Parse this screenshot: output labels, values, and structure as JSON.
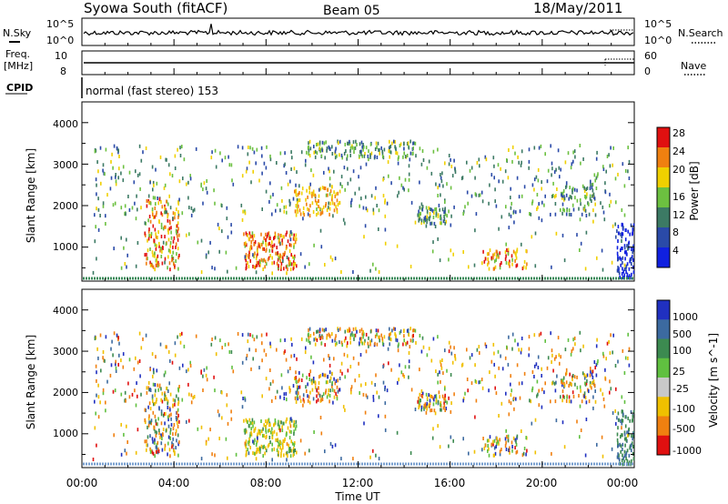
{
  "header": {
    "title": "Syowa South (fitACF)",
    "beam": "Beam 05",
    "date": "18/May/2011"
  },
  "noise_panel": {
    "left_label": "N.Sky",
    "right_label": "N.Search",
    "left_ticks": [
      "10^5",
      "10^0"
    ],
    "right_ticks": [
      "10^5",
      "10^0"
    ]
  },
  "freq_panel": {
    "left_label_1": "Freq.",
    "left_label_2": "[MHz]",
    "right_label": "Nave",
    "left_ticks": [
      "10",
      "8"
    ],
    "right_ticks": [
      "60",
      "0"
    ]
  },
  "cpid": {
    "label": "CPID",
    "mode_text": "normal (fast stereo) 153"
  },
  "axes": {
    "y_label": "Slant Range [km]",
    "y_ticks": [
      "1000",
      "2000",
      "3000",
      "4000"
    ],
    "x_label": "Time UT",
    "x_ticks": [
      "00:00",
      "04:00",
      "08:00",
      "12:00",
      "16:00",
      "20:00",
      "00:00"
    ]
  },
  "power_scale": {
    "label": "Power [dB]",
    "ticks": [
      "4",
      "8",
      "12",
      "16",
      "20",
      "24",
      "28"
    ],
    "colors": [
      "#1020e0",
      "#2a4aa8",
      "#3c7a64",
      "#6cc040",
      "#f0d000",
      "#f08010",
      "#e01010"
    ]
  },
  "velocity_scale": {
    "label": "Velocity [m s^-1]",
    "ticks": [
      "1000",
      "500",
      "100",
      "25",
      "-25",
      "-100",
      "-500",
      "-1000"
    ],
    "colors": [
      "#2030c0",
      "#3c6aa0",
      "#3c8a50",
      "#60c040",
      "#c8c8c8",
      "#f0c000",
      "#f08010",
      "#e01010"
    ]
  },
  "chart_data": {
    "type": "heatmap",
    "x_range_hours": [
      0,
      24
    ],
    "y_range_km": [
      180,
      4500
    ],
    "scatter_regions": [
      {
        "name": "sparse",
        "t": [
          0.5,
          23.8
        ],
        "r": [
          1800,
          3500
        ],
        "n": 520
      },
      {
        "name": "sparse-high",
        "t": [
          9.8,
          14.5
        ],
        "r": [
          3200,
          3600
        ],
        "n": 120
      },
      {
        "name": "dense-0330",
        "t": [
          2.7,
          4.2
        ],
        "r": [
          500,
          2200
        ],
        "n": 160
      },
      {
        "name": "dense-0800",
        "t": [
          7.0,
          9.3
        ],
        "r": [
          500,
          1400
        ],
        "n": 190
      },
      {
        "name": "dense-1000",
        "t": [
          9.2,
          11.2
        ],
        "r": [
          1800,
          2500
        ],
        "n": 90
      },
      {
        "name": "dense-1500",
        "t": [
          14.5,
          15.8
        ],
        "r": [
          1600,
          2000
        ],
        "n": 60
      },
      {
        "name": "dense-1800",
        "t": [
          17.4,
          19.3
        ],
        "r": [
          500,
          1000
        ],
        "n": 60
      },
      {
        "name": "dense-2130",
        "t": [
          20.8,
          22.3
        ],
        "r": [
          1800,
          2600
        ],
        "n": 70
      },
      {
        "name": "late-0000",
        "t": [
          23.2,
          23.95
        ],
        "r": [
          300,
          1600
        ],
        "n": 90
      }
    ],
    "ground_band_km": 200
  }
}
